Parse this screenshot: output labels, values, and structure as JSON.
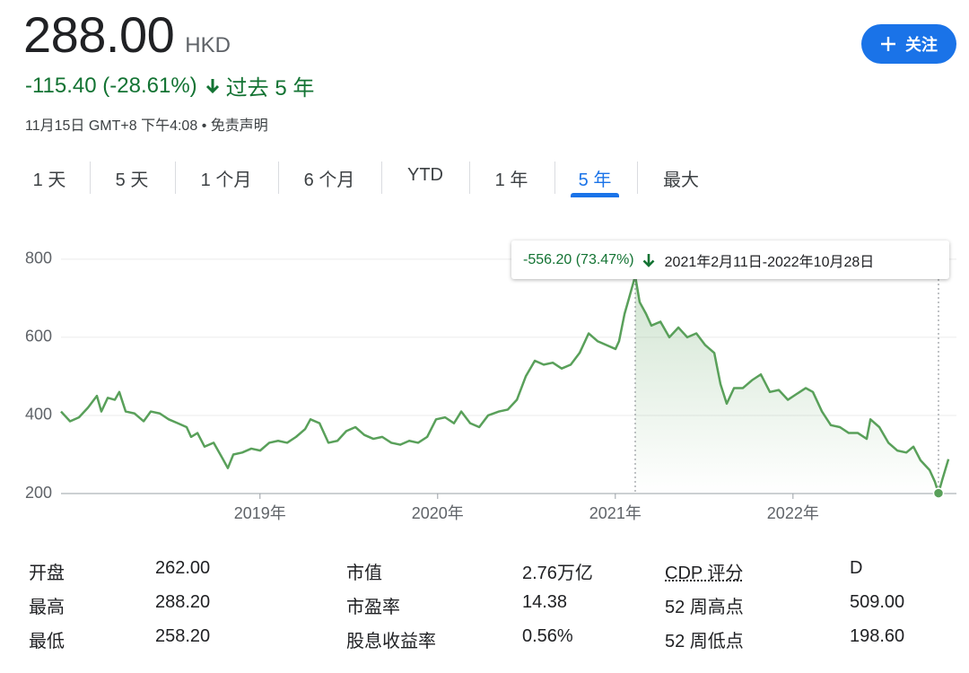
{
  "header": {
    "price": "288.00",
    "currency": "HKD",
    "change": "-115.40 (-28.61%)",
    "period": "过去 5 年",
    "timestamp": "11月15日 GMT+8 下午4:08",
    "separator": "•",
    "disclaimer": "免责声明",
    "follow_button": "关注"
  },
  "tabs": {
    "items": [
      "1 天",
      "5 天",
      "1 个月",
      "6 个月",
      "YTD",
      "1 年",
      "5 年",
      "最大"
    ],
    "selected": 6
  },
  "chart_data": {
    "type": "line",
    "color": "#59a05a",
    "grid": true,
    "x": [
      2017.88,
      2017.931,
      2017.981,
      2018.032,
      2018.082,
      2018.107,
      2018.143,
      2018.183,
      2018.208,
      2018.244,
      2018.294,
      2018.345,
      2018.385,
      2018.436,
      2018.486,
      2018.537,
      2018.587,
      2018.612,
      2018.648,
      2018.688,
      2018.739,
      2018.789,
      2018.819,
      2018.85,
      2018.9,
      2018.951,
      2019.001,
      2019.052,
      2019.102,
      2019.153,
      2019.203,
      2019.254,
      2019.284,
      2019.335,
      2019.385,
      2019.436,
      2019.486,
      2019.537,
      2019.587,
      2019.638,
      2019.688,
      2019.739,
      2019.789,
      2019.84,
      2019.89,
      2019.941,
      2019.991,
      2020.042,
      2020.092,
      2020.133,
      2020.183,
      2020.234,
      2020.284,
      2020.345,
      2020.395,
      2020.446,
      2020.496,
      2020.547,
      2020.597,
      2020.648,
      2020.698,
      2020.749,
      2020.799,
      2020.85,
      2020.9,
      2020.951,
      2021.001,
      2021.021,
      2021.052,
      2021.077,
      2021.112,
      2021.137,
      2021.173,
      2021.203,
      2021.254,
      2021.304,
      2021.355,
      2021.405,
      2021.456,
      2021.506,
      2021.557,
      2021.592,
      2021.627,
      2021.668,
      2021.718,
      2021.769,
      2021.819,
      2021.87,
      2021.92,
      2021.971,
      2022.021,
      2022.072,
      2022.112,
      2022.163,
      2022.213,
      2022.264,
      2022.314,
      2022.365,
      2022.415,
      2022.436,
      2022.486,
      2022.537,
      2022.587,
      2022.638,
      2022.678,
      2022.718,
      2022.769,
      2022.799,
      2022.819,
      2022.84,
      2022.875
    ],
    "values": [
      410,
      385,
      395,
      420,
      450,
      410,
      445,
      440,
      460,
      410,
      405,
      385,
      410,
      405,
      390,
      380,
      370,
      345,
      355,
      320,
      330,
      290,
      265,
      300,
      305,
      315,
      310,
      330,
      335,
      330,
      345,
      365,
      390,
      380,
      330,
      335,
      360,
      370,
      350,
      340,
      345,
      330,
      325,
      335,
      330,
      345,
      390,
      395,
      380,
      410,
      380,
      370,
      400,
      410,
      415,
      440,
      500,
      540,
      530,
      535,
      520,
      530,
      560,
      610,
      590,
      580,
      570,
      590,
      660,
      700,
      757,
      690,
      660,
      630,
      640,
      600,
      625,
      600,
      610,
      580,
      560,
      480,
      430,
      470,
      470,
      490,
      505,
      460,
      465,
      440,
      455,
      470,
      460,
      410,
      375,
      370,
      355,
      355,
      340,
      390,
      370,
      330,
      310,
      305,
      320,
      285,
      260,
      230,
      201,
      235,
      288
    ],
    "xlim": [
      2017.88,
      2022.92
    ],
    "ylim": [
      200,
      880
    ],
    "yticks": [
      200,
      400,
      600,
      800
    ],
    "xticks": [
      {
        "value": 2019,
        "label": "2019年"
      },
      {
        "value": 2020,
        "label": "2020年"
      },
      {
        "value": 2021,
        "label": "2021年"
      },
      {
        "value": 2022,
        "label": "2022年"
      }
    ],
    "annotation": {
      "change": "-556.20 (73.47%)",
      "range": "2021年2月11日-2022年10月28日"
    }
  },
  "stats": {
    "rows": [
      [
        "开盘",
        "262.00",
        "市值",
        "2.76万亿",
        "CDP 评分",
        "D"
      ],
      [
        "最高",
        "288.20",
        "市盈率",
        "14.38",
        "52 周高点",
        "509.00"
      ],
      [
        "最低",
        "258.20",
        "股息收益率",
        "0.56%",
        "52 周低点",
        "198.60"
      ]
    ]
  }
}
